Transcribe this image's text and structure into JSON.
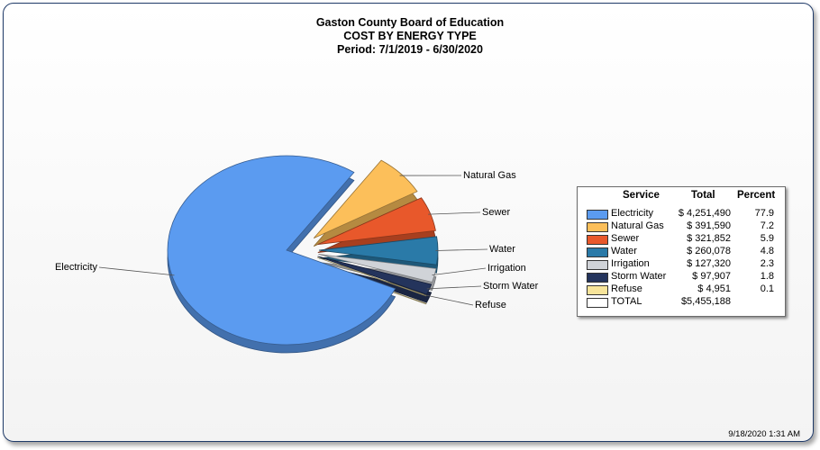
{
  "chart_data": {
    "type": "pie",
    "title": "Gaston County Board of Education",
    "subtitle": "COST BY ENERGY TYPE",
    "period": "Period: 7/1/2019 - 6/30/2020",
    "exploded": true,
    "three_d": true,
    "slices": [
      {
        "label": "Electricity",
        "value": 4251490,
        "total": "$ 4,251,490",
        "percent": "77.9",
        "color": "#5b9bf0"
      },
      {
        "label": "Natural Gas",
        "value": 391590,
        "total": "$ 391,590",
        "percent": "7.2",
        "color": "#fcbf5a"
      },
      {
        "label": "Sewer",
        "value": 321852,
        "total": "$ 321,852",
        "percent": "5.9",
        "color": "#e8582b"
      },
      {
        "label": "Water",
        "value": 260078,
        "total": "$ 260,078",
        "percent": "4.8",
        "color": "#2a7aa8"
      },
      {
        "label": "Irrigation",
        "value": 127320,
        "total": "$ 127,320",
        "percent": "2.3",
        "color": "#d0d3d8"
      },
      {
        "label": "Storm Water",
        "value": 97907,
        "total": "$ 97,907",
        "percent": "1.8",
        "color": "#24345c"
      },
      {
        "label": "Refuse",
        "value": 4951,
        "total": "$ 4,951",
        "percent": "0.1",
        "color": "#f7e49a"
      }
    ],
    "legend": {
      "headers": {
        "service": "Service",
        "total": "Total",
        "percent": "Percent"
      },
      "total_row": {
        "label": "TOTAL",
        "total": "$5,455,188",
        "color": "#ffffff"
      },
      "placement": "right"
    }
  },
  "timestamp": "9/18/2020 1:31 AM"
}
